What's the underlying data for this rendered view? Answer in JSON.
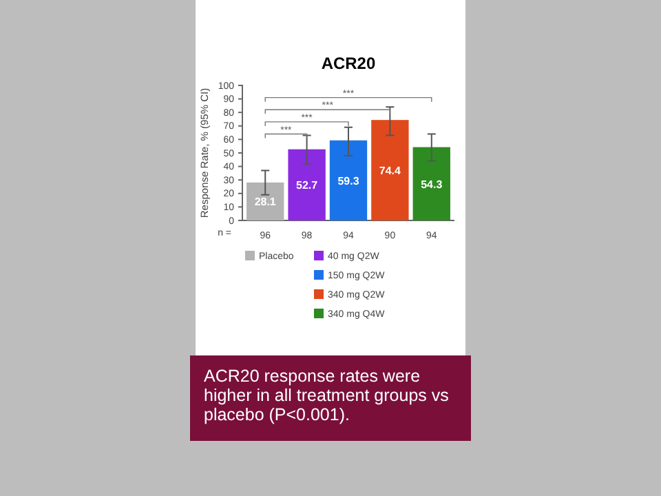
{
  "chart_data": {
    "type": "bar",
    "title": "ACR20",
    "ylabel": "Response Rate, % (95% CI)",
    "categories": [
      "96",
      "98",
      "94",
      "90",
      "94"
    ],
    "series": [
      {
        "name": "Placebo",
        "color": "#b3b3b3",
        "values": [
          28.1,
          null,
          null,
          null,
          null
        ],
        "errors": [
          [
            19,
            37
          ],
          null,
          null,
          null,
          null
        ]
      },
      {
        "name": "40 mg Q2W",
        "color": "#8a2be2",
        "values": [
          null,
          52.7,
          null,
          null,
          null
        ],
        "errors": [
          null,
          [
            42,
            63
          ],
          null,
          null,
          null
        ]
      },
      {
        "name": "150 mg Q2W",
        "color": "#1a73e8",
        "values": [
          null,
          null,
          59.3,
          null,
          null
        ],
        "errors": [
          null,
          null,
          [
            48,
            69
          ],
          null,
          null
        ]
      },
      {
        "name": "340 mg Q2W",
        "color": "#e0491c",
        "values": [
          null,
          null,
          null,
          74.4,
          null
        ],
        "errors": [
          null,
          null,
          null,
          [
            63,
            84
          ],
          null
        ]
      },
      {
        "name": "340 mg Q4W",
        "color": "#2e8b22",
        "values": [
          null,
          null,
          null,
          null,
          54.3
        ],
        "errors": [
          null,
          null,
          null,
          null,
          [
            44,
            64
          ]
        ]
      }
    ],
    "ylim": [
      0,
      100
    ],
    "yticks": [
      0,
      10,
      20,
      30,
      40,
      50,
      60,
      70,
      80,
      90,
      100
    ],
    "data_labels": true,
    "legend": "bottom",
    "annotations": [
      "n =",
      "***",
      "***",
      "***",
      "***",
      "ACR20 response rates were higher in all treatment groups vs placebo (P<0.001)."
    ]
  }
}
